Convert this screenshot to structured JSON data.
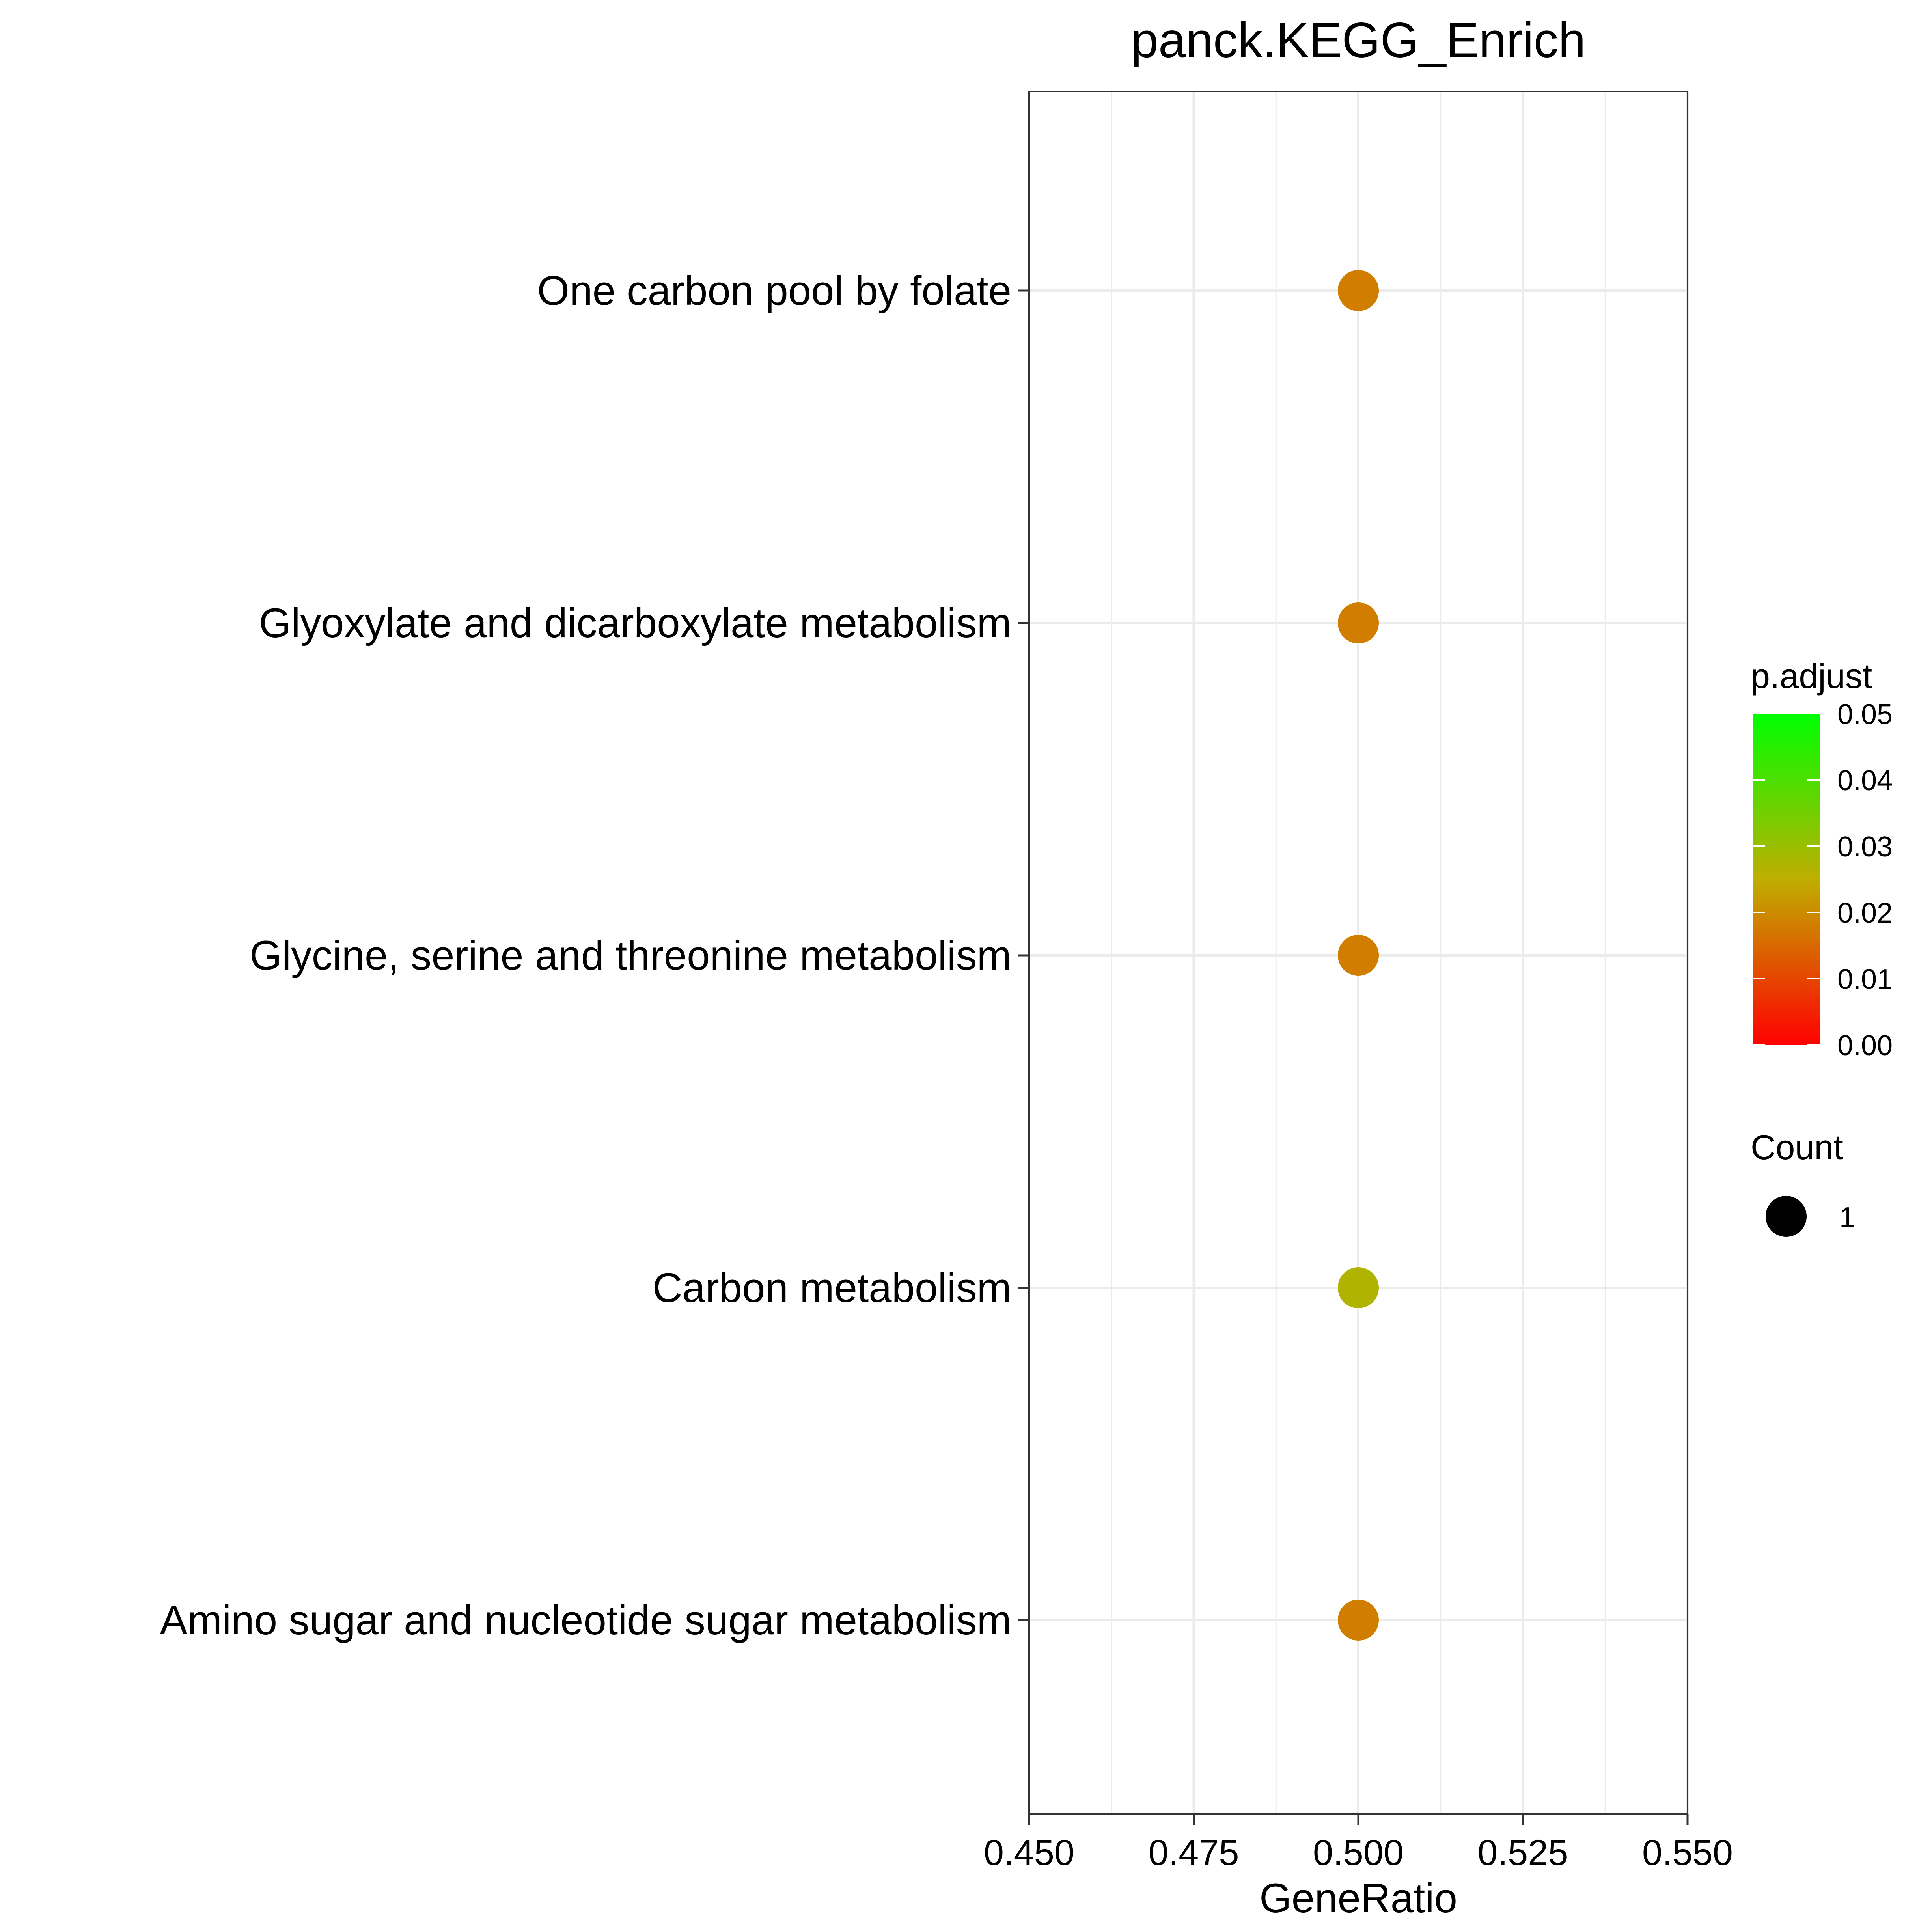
{
  "chart_data": {
    "type": "scatter",
    "title": "panck.KEGG_Enrich",
    "xlabel": "GeneRatio",
    "ylabel": "",
    "xlim": [
      0.45,
      0.55
    ],
    "xticks": [
      "0.450",
      "0.475",
      "0.500",
      "0.525",
      "0.550"
    ],
    "xtick_values": [
      0.45,
      0.475,
      0.5,
      0.525,
      0.55
    ],
    "categories": [
      "One carbon pool by folate",
      "Glyoxylate and dicarboxylate metabolism",
      "Glycine, serine and threonine metabolism",
      "Carbon metabolism",
      "Amino sugar and nucleotide sugar metabolism"
    ],
    "points": [
      {
        "category": "One carbon pool by folate",
        "x": 0.5,
        "p_adjust": 0.018,
        "count": 1
      },
      {
        "category": "Glyoxylate and dicarboxylate metabolism",
        "x": 0.5,
        "p_adjust": 0.018,
        "count": 1
      },
      {
        "category": "Glycine, serine and threonine metabolism",
        "x": 0.5,
        "p_adjust": 0.018,
        "count": 1
      },
      {
        "category": "Carbon metabolism",
        "x": 0.5,
        "p_adjust": 0.027,
        "count": 1
      },
      {
        "category": "Amino sugar and nucleotide sugar metabolism",
        "x": 0.5,
        "p_adjust": 0.018,
        "count": 1
      }
    ],
    "grid": true,
    "color_legend": {
      "title": "p.adjust",
      "labels": [
        "0.05",
        "0.04",
        "0.03",
        "0.02",
        "0.01",
        "0.00"
      ],
      "values": [
        0.05,
        0.04,
        0.03,
        0.02,
        0.01,
        0.0
      ],
      "low_color": "#ff0000",
      "high_color": "#00ff00",
      "placement": "right"
    },
    "size_legend": {
      "title": "Count",
      "labels": [
        "1"
      ],
      "placement": "right"
    },
    "colors": {
      "grid": "#ebebeb",
      "panel_border": "#333333",
      "size_key": "#000000"
    }
  }
}
